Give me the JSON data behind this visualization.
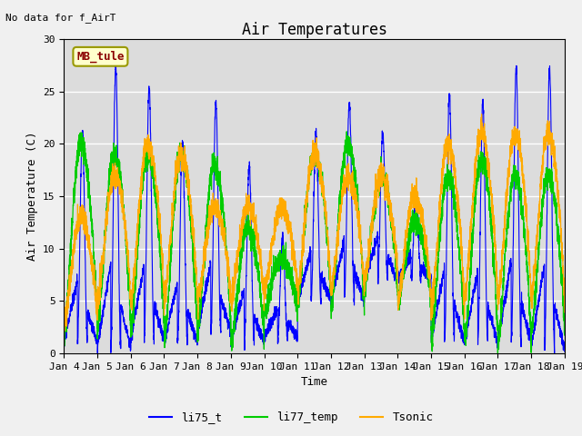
{
  "title": "Air Temperatures",
  "ylabel": "Air Temperature (C)",
  "xlabel": "Time",
  "top_note": "No data for f_AirT",
  "legend_box_label": "MB_tule",
  "ylim": [
    0,
    30
  ],
  "x_tick_labels": [
    "Jan 4",
    "Jan 5",
    "Jan 6",
    "Jan 7",
    "Jan 8",
    "Jan 9",
    "Jan 10",
    "Jan 11",
    "Jan 12",
    "Jan 13",
    "Jan 14",
    "Jan 15",
    "Jan 16",
    "Jan 17",
    "Jan 18",
    "Jan 19"
  ],
  "series": {
    "li75_t": {
      "color": "#0000ff",
      "label": "li75_t"
    },
    "li77_temp": {
      "color": "#00cc00",
      "label": "li77_temp"
    },
    "Tsonic": {
      "color": "#ffaa00",
      "label": "Tsonic"
    }
  },
  "bg_color": "#dcdcdc",
  "fig_bg": "#f0f0f0",
  "grid_color": "#ffffff",
  "title_fontsize": 12,
  "axis_fontsize": 9,
  "tick_fontsize": 8,
  "legend_fontsize": 9,
  "lw_blue": 0.8,
  "lw_green": 0.9,
  "lw_orange": 0.9
}
